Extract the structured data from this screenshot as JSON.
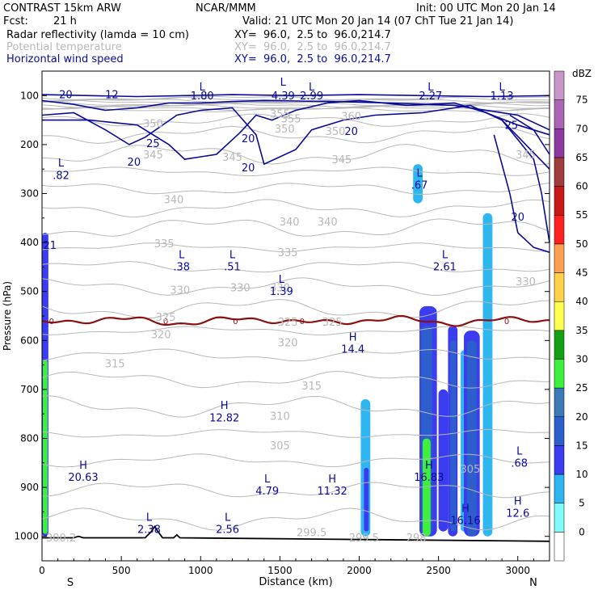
{
  "header": {
    "model": "CONTRAST 15km ARW",
    "org": "NCAR/MMM",
    "init": "Init: 00 UTC Mon 20 Jan 14",
    "fcst_label": "Fcst:",
    "fcst_value": "21 h",
    "valid": "Valid: 21 UTC Mon 20 Jan 14 (07 ChT Tue 21 Jan 14)",
    "fields": [
      {
        "name": "Radar reflectivity (lamda = 10 cm)",
        "xy": "XY=  96.0,  2.5 to  96.0,214.7",
        "color": "#000000"
      },
      {
        "name": "Potential temperature",
        "xy": "XY=  96.0,  2.5 to  96.0,214.7",
        "color": "#b8b8b8"
      },
      {
        "name": "Horizontal wind speed",
        "xy": "XY=  96.0,  2.5 to  96.0,214.7",
        "color": "#0a0a9a"
      }
    ]
  },
  "chart_data": {
    "type": "cross-section",
    "xlabel": "Distance (km)",
    "ylabel": "Pressure (hPa)",
    "xlim": [
      0,
      3200
    ],
    "ylim": [
      1050,
      50
    ],
    "x_ticks": [
      0,
      500,
      1000,
      1500,
      2000,
      2500,
      3000
    ],
    "y_ticks": [
      100,
      200,
      300,
      400,
      500,
      600,
      700,
      800,
      900,
      1000
    ],
    "end_labels": {
      "left": "S",
      "right": "N"
    },
    "colorbar": {
      "unit": "dBZ",
      "levels": [
        0,
        5,
        10,
        15,
        20,
        25,
        30,
        35,
        40,
        45,
        50,
        55,
        60,
        65,
        70,
        75
      ],
      "colors": [
        "#ffffff",
        "#7ffbfb",
        "#2eb6f0",
        "#3b3bf0",
        "#2d5fcc",
        "#3b79b8",
        "#3cf03c",
        "#14a014",
        "#ffff50",
        "#ffd24a",
        "#ffa050",
        "#ff2020",
        "#c81818",
        "#a03c3c",
        "#8c3aa0",
        "#aa64b4",
        "#c896c8"
      ]
    },
    "freezing_level": {
      "label": "0",
      "pressure_hPa": 560,
      "color": "#8b1010"
    },
    "theta_labels": [
      {
        "x": 1500,
        "p": 145,
        "label": "355"
      },
      {
        "x": 1530,
        "p": 175,
        "label": "350"
      },
      {
        "x": 1570,
        "p": 155,
        "label": "355"
      },
      {
        "x": 1850,
        "p": 180,
        "label": "350"
      },
      {
        "x": 1950,
        "p": 150,
        "label": "360"
      },
      {
        "x": 700,
        "p": 165,
        "label": "350"
      },
      {
        "x": 700,
        "p": 228,
        "label": "345"
      },
      {
        "x": 1200,
        "p": 233,
        "label": "345"
      },
      {
        "x": 1890,
        "p": 238,
        "label": "345"
      },
      {
        "x": 3050,
        "p": 228,
        "label": "345"
      },
      {
        "x": 830,
        "p": 320,
        "label": "340"
      },
      {
        "x": 1560,
        "p": 365,
        "label": "340"
      },
      {
        "x": 1800,
        "p": 365,
        "label": "340"
      },
      {
        "x": 770,
        "p": 410,
        "label": "335"
      },
      {
        "x": 1550,
        "p": 428,
        "label": "335"
      },
      {
        "x": 1250,
        "p": 500,
        "label": "330"
      },
      {
        "x": 1500,
        "p": 500,
        "label": "330"
      },
      {
        "x": 3050,
        "p": 487,
        "label": "330"
      },
      {
        "x": 870,
        "p": 505,
        "label": "330"
      },
      {
        "x": 780,
        "p": 560,
        "label": "325"
      },
      {
        "x": 1550,
        "p": 570,
        "label": "325"
      },
      {
        "x": 1830,
        "p": 570,
        "label": "325"
      },
      {
        "x": 750,
        "p": 595,
        "label": "320"
      },
      {
        "x": 1550,
        "p": 612,
        "label": "320"
      },
      {
        "x": 460,
        "p": 655,
        "label": "315"
      },
      {
        "x": 1700,
        "p": 700,
        "label": "315"
      },
      {
        "x": 1500,
        "p": 762,
        "label": "310"
      },
      {
        "x": 1500,
        "p": 822,
        "label": "305"
      },
      {
        "x": 2700,
        "p": 870,
        "label": "305"
      },
      {
        "x": 120,
        "p": 1010,
        "label": "300.2"
      },
      {
        "x": 1700,
        "p": 1000,
        "label": "299.5"
      },
      {
        "x": 2030,
        "p": 1010,
        "label": "299.5"
      },
      {
        "x": 2360,
        "p": 1010,
        "label": "298"
      }
    ],
    "wind_labels": [
      {
        "x": 150,
        "p": 105,
        "label": "20"
      },
      {
        "x": 440,
        "p": 105,
        "label": "12"
      },
      {
        "x": 580,
        "p": 243,
        "label": "20"
      },
      {
        "x": 700,
        "p": 205,
        "label": "25"
      },
      {
        "x": 1300,
        "p": 195,
        "label": "20"
      },
      {
        "x": 1300,
        "p": 255,
        "label": "20"
      },
      {
        "x": 1950,
        "p": 180,
        "label": "20"
      },
      {
        "x": 2960,
        "p": 168,
        "label": "25"
      },
      {
        "x": 3000,
        "p": 355,
        "label": "20"
      },
      {
        "x": 50,
        "p": 413,
        "label": "21"
      }
    ],
    "extrema": [
      {
        "x": 1010,
        "p": 90,
        "label": "L"
      },
      {
        "x": 1520,
        "p": 80,
        "label": "L"
      },
      {
        "x": 1700,
        "p": 90,
        "label": "L"
      },
      {
        "x": 2450,
        "p": 90,
        "label": "L"
      },
      {
        "x": 2900,
        "p": 90,
        "label": "L"
      },
      {
        "x": 1010,
        "p": 108,
        "label": "1.80"
      },
      {
        "x": 1520,
        "p": 108,
        "label": "4.39"
      },
      {
        "x": 1700,
        "p": 108,
        "label": "2.99"
      },
      {
        "x": 2450,
        "p": 108,
        "label": "2.27"
      },
      {
        "x": 2900,
        "p": 108,
        "label": "1.13"
      },
      {
        "x": 120,
        "p": 245,
        "label": "L"
      },
      {
        "x": 120,
        "p": 270,
        "label": ".82"
      },
      {
        "x": 2380,
        "p": 265,
        "label": "L"
      },
      {
        "x": 2380,
        "p": 290,
        "label": ".67"
      },
      {
        "x": 880,
        "p": 432,
        "label": "L"
      },
      {
        "x": 880,
        "p": 457,
        "label": ".38"
      },
      {
        "x": 1200,
        "p": 432,
        "label": "L"
      },
      {
        "x": 1200,
        "p": 457,
        "label": ".51"
      },
      {
        "x": 1510,
        "p": 482,
        "label": "L"
      },
      {
        "x": 1510,
        "p": 507,
        "label": "1.39"
      },
      {
        "x": 2540,
        "p": 432,
        "label": "L"
      },
      {
        "x": 2540,
        "p": 457,
        "label": "2.61"
      },
      {
        "x": 1960,
        "p": 600,
        "label": "H"
      },
      {
        "x": 1960,
        "p": 625,
        "label": "14.4"
      },
      {
        "x": 1150,
        "p": 740,
        "label": "H"
      },
      {
        "x": 1150,
        "p": 765,
        "label": "12.82"
      },
      {
        "x": 3010,
        "p": 833,
        "label": "L"
      },
      {
        "x": 3010,
        "p": 858,
        "label": ".68"
      },
      {
        "x": 260,
        "p": 862,
        "label": "H"
      },
      {
        "x": 260,
        "p": 887,
        "label": "20.63"
      },
      {
        "x": 1420,
        "p": 890,
        "label": "L"
      },
      {
        "x": 1420,
        "p": 915,
        "label": "4.79"
      },
      {
        "x": 1830,
        "p": 890,
        "label": "H"
      },
      {
        "x": 1830,
        "p": 915,
        "label": "11.32"
      },
      {
        "x": 2440,
        "p": 862,
        "label": "H"
      },
      {
        "x": 2440,
        "p": 887,
        "label": "16.83"
      },
      {
        "x": 2670,
        "p": 950,
        "label": "H"
      },
      {
        "x": 2670,
        "p": 975,
        "label": "16.16"
      },
      {
        "x": 3000,
        "p": 935,
        "label": "H"
      },
      {
        "x": 3000,
        "p": 960,
        "label": "12.6"
      },
      {
        "x": 675,
        "p": 968,
        "label": "L"
      },
      {
        "x": 675,
        "p": 993,
        "label": "2.38"
      },
      {
        "x": 1170,
        "p": 968,
        "label": "L"
      },
      {
        "x": 1170,
        "p": 993,
        "label": "2.56"
      }
    ],
    "reflectivity_cells": [
      {
        "x": [
          0,
          40
        ],
        "p_top": 380,
        "p_bot": 1000,
        "dbz": 12
      },
      {
        "x": [
          5,
          35
        ],
        "p_top": 640,
        "p_bot": 995,
        "dbz": 27
      },
      {
        "x": [
          2010,
          2070
        ],
        "p_top": 720,
        "p_bot": 1000,
        "dbz": 8
      },
      {
        "x": [
          2030,
          2060
        ],
        "p_top": 860,
        "p_bot": 990,
        "dbz": 12
      },
      {
        "x": [
          2380,
          2490
        ],
        "p_top": 530,
        "p_bot": 1000,
        "dbz": 12
      },
      {
        "x": [
          2390,
          2460
        ],
        "p_top": 570,
        "p_bot": 1000,
        "dbz": 18
      },
      {
        "x": [
          2400,
          2450
        ],
        "p_top": 800,
        "p_bot": 1000,
        "dbz": 27
      },
      {
        "x": [
          2500,
          2560
        ],
        "p_top": 700,
        "p_bot": 990,
        "dbz": 10
      },
      {
        "x": [
          2560,
          2620
        ],
        "p_top": 570,
        "p_bot": 1000,
        "dbz": 12
      },
      {
        "x": [
          2575,
          2610
        ],
        "p_top": 600,
        "p_bot": 990,
        "dbz": 18
      },
      {
        "x": [
          2640,
          2680
        ],
        "p_top": 620,
        "p_bot": 990,
        "dbz": 8
      },
      {
        "x": [
          2660,
          2760
        ],
        "p_top": 580,
        "p_bot": 1000,
        "dbz": 12
      },
      {
        "x": [
          2680,
          2740
        ],
        "p_top": 600,
        "p_bot": 1000,
        "dbz": 18
      },
      {
        "x": [
          2780,
          2840
        ],
        "p_top": 340,
        "p_bot": 1000,
        "dbz": 8
      },
      {
        "x": [
          2340,
          2400
        ],
        "p_top": 240,
        "p_bot": 320,
        "dbz": 8
      }
    ]
  }
}
